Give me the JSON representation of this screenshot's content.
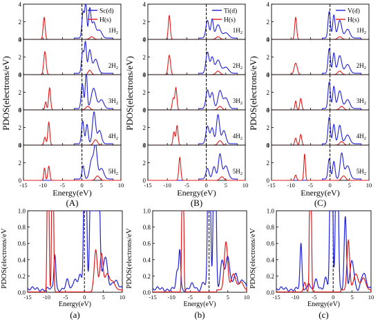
{
  "figure": {
    "top_ylabel": "PDOS(electrons/eV)",
    "bottom_ylabel": "PDOS(electrons/eV",
    "xlabel": "Energy(eV)",
    "colors": {
      "metal": "#1f1fd6",
      "hydrogen": "#e01818",
      "fermi": "#000000",
      "axis": "#000000"
    }
  },
  "chart_data": [
    {
      "type": "line",
      "panel": "(A)",
      "legend": [
        "Sc(d)",
        "H(s)"
      ],
      "xlim": [
        -15,
        10
      ],
      "ylim": [
        0,
        4
      ],
      "xticks": [
        "-15",
        "-10",
        "-5",
        "0",
        "5",
        "10"
      ],
      "yticks": [
        "0",
        "2",
        "4"
      ],
      "fermi_level": 0,
      "rows": [
        {
          "label": "1H2",
          "h_peaks": [
            [
              -9.7,
              2.5,
              0.25
            ]
          ],
          "m_peaks": [
            [
              0.3,
              3.0,
              0.3
            ],
            [
              1,
              3.9,
              0.25
            ],
            [
              2,
              3.2,
              0.3
            ],
            [
              3,
              1.8,
              0.5
            ],
            [
              4.5,
              0.9,
              0.6
            ]
          ],
          "h_small": [
            [
              2.5,
              0.3,
              0.5
            ]
          ]
        },
        {
          "label": "2H2",
          "h_peaks": [
            [
              -9.5,
              2.6,
              0.3
            ]
          ],
          "m_peaks": [
            [
              0.2,
              2.5,
              0.3
            ],
            [
              0.9,
              3.4,
              0.25
            ],
            [
              2,
              2.6,
              0.4
            ],
            [
              3.5,
              1.6,
              0.6
            ]
          ],
          "h_small": [
            [
              2,
              0.5,
              0.4
            ]
          ]
        },
        {
          "label": "3H2",
          "h_peaks": [
            [
              -9.3,
              0.9,
              0.2
            ],
            [
              -8.3,
              2.5,
              0.25
            ]
          ],
          "m_peaks": [
            [
              0.1,
              2.8,
              0.3
            ],
            [
              1.1,
              4.2,
              0.25
            ],
            [
              3,
              2.3,
              0.6
            ],
            [
              5,
              1.0,
              0.6
            ]
          ],
          "h_small": [
            [
              1.5,
              0.4,
              0.5
            ]
          ]
        },
        {
          "label": "4H2",
          "h_peaks": [
            [
              -9.5,
              0.9,
              0.25
            ],
            [
              -8.5,
              2.6,
              0.25
            ]
          ],
          "m_peaks": [
            [
              0.2,
              2.6,
              0.3
            ],
            [
              1.3,
              2.2,
              0.3
            ],
            [
              3.1,
              3.6,
              0.4
            ],
            [
              4.5,
              1.5,
              0.5
            ]
          ],
          "h_small": [
            [
              3.5,
              0.6,
              0.5
            ]
          ]
        },
        {
          "label": "5H2",
          "h_peaks": [
            [
              -9.6,
              1.4,
              0.2
            ],
            [
              -8.5,
              1.6,
              0.25
            ]
          ],
          "m_peaks": [
            [
              0.3,
              1.5,
              0.3
            ],
            [
              2.5,
              2.2,
              0.5
            ],
            [
              3.5,
              3.7,
              0.4
            ],
            [
              5,
              1.2,
              0.6
            ]
          ],
          "h_small": [
            [
              4,
              0.5,
              0.5
            ]
          ]
        }
      ]
    },
    {
      "type": "line",
      "panel": "(B)",
      "legend": [
        "Ti(d)",
        "H(s)"
      ],
      "xlim": [
        -15,
        10
      ],
      "ylim": [
        0,
        4
      ],
      "xticks": [
        "-15",
        "-10",
        "-5",
        "0",
        "5",
        "10"
      ],
      "yticks": [
        "0",
        "2",
        "4"
      ],
      "fermi_level": 0,
      "rows": [
        {
          "label": "1H2",
          "h_peaks": [
            [
              -9.5,
              2.7,
              0.25
            ]
          ],
          "m_peaks": [
            [
              0.3,
              2.0,
              0.4
            ],
            [
              1.5,
              2.1,
              0.3
            ],
            [
              3,
              1.5,
              0.6
            ],
            [
              5,
              0.6,
              0.7
            ]
          ],
          "h_small": [
            [
              3,
              0.3,
              0.5
            ]
          ]
        },
        {
          "label": "2H2",
          "h_peaks": [
            [
              -9.5,
              2.2,
              0.3
            ]
          ],
          "m_peaks": [
            [
              0.3,
              2.4,
              0.4
            ],
            [
              1.5,
              1.8,
              0.4
            ],
            [
              3,
              1.5,
              0.6
            ],
            [
              5,
              0.7,
              0.7
            ]
          ],
          "h_small": [
            [
              3,
              0.4,
              0.5
            ]
          ]
        },
        {
          "label": "3H2",
          "h_peaks": [
            [
              -8.5,
              1.3,
              0.25
            ],
            [
              -7.8,
              2.5,
              0.25
            ]
          ],
          "m_peaks": [
            [
              0.3,
              2.1,
              0.4
            ],
            [
              1.5,
              1.8,
              0.4
            ],
            [
              3.5,
              2.0,
              0.5
            ],
            [
              5,
              1.2,
              0.6
            ]
          ],
          "h_small": [
            [
              3.5,
              0.4,
              0.5
            ]
          ]
        },
        {
          "label": "4H2",
          "h_peaks": [
            [
              -8.3,
              1.5,
              0.25
            ],
            [
              -7.5,
              2.2,
              0.25
            ]
          ],
          "m_peaks": [
            [
              0.3,
              2.0,
              0.4
            ],
            [
              1.5,
              1.8,
              0.4
            ],
            [
              3,
              3.3,
              0.4
            ],
            [
              4.5,
              1.5,
              0.5
            ]
          ],
          "h_small": [
            [
              3.5,
              0.5,
              0.5
            ]
          ]
        },
        {
          "label": "5H2",
          "h_peaks": [
            [
              -6.8,
              2.6,
              0.25
            ]
          ],
          "m_peaks": [
            [
              0.3,
              1.2,
              0.4
            ],
            [
              2,
              1.4,
              0.4
            ],
            [
              3.5,
              2.8,
              0.4
            ],
            [
              5,
              1.5,
              0.6
            ]
          ],
          "h_small": [
            [
              4,
              0.4,
              0.5
            ]
          ]
        }
      ]
    },
    {
      "type": "line",
      "panel": "(C)",
      "legend": [
        "V(d)",
        "H(s)"
      ],
      "xlim": [
        -15,
        10
      ],
      "ylim": [
        0,
        4
      ],
      "xticks": [
        "-15",
        "-10",
        "-5",
        "0",
        "5",
        "10"
      ],
      "yticks": [
        "0",
        "2",
        "4"
      ],
      "fermi_level": 0,
      "rows": [
        {
          "label": "1H2",
          "h_peaks": [
            [
              -8.8,
              2.5,
              0.25
            ]
          ],
          "m_peaks": [
            [
              -0.2,
              3.0,
              0.3
            ],
            [
              1,
              2.6,
              0.3
            ],
            [
              2.5,
              2.0,
              0.5
            ],
            [
              4.5,
              1.0,
              0.6
            ]
          ],
          "h_small": [
            [
              2.5,
              0.3,
              0.5
            ]
          ]
        },
        {
          "label": "2H2",
          "h_peaks": [
            [
              -8.8,
              1.3,
              0.4
            ]
          ],
          "m_peaks": [
            [
              -0.2,
              2.8,
              0.3
            ],
            [
              1,
              2.3,
              0.3
            ],
            [
              2.5,
              2.0,
              0.5
            ],
            [
              4.5,
              1.0,
              0.6
            ]
          ],
          "h_small": [
            [
              2.5,
              0.4,
              0.5
            ]
          ]
        },
        {
          "label": "3H2",
          "h_peaks": [
            [
              -8.8,
              1.0,
              0.2
            ],
            [
              -7.5,
              1.3,
              0.25
            ]
          ],
          "m_peaks": [
            [
              -0.2,
              3.0,
              0.3
            ],
            [
              1,
              2.5,
              0.3
            ],
            [
              2.5,
              2.0,
              0.5
            ],
            [
              4.5,
              1.0,
              0.6
            ]
          ],
          "h_small": [
            [
              3,
              0.4,
              0.5
            ]
          ]
        },
        {
          "label": "4H2",
          "h_peaks": [
            [
              -8.8,
              0.8,
              0.25
            ],
            [
              -7.5,
              1.2,
              0.25
            ]
          ],
          "m_peaks": [
            [
              -0.2,
              3.0,
              0.3
            ],
            [
              1,
              2.2,
              0.3
            ],
            [
              2.5,
              2.1,
              0.4
            ],
            [
              4.5,
              1.0,
              0.6
            ]
          ],
          "h_small": [
            [
              3,
              0.4,
              0.5
            ]
          ]
        },
        {
          "label": "5H2",
          "h_peaks": [
            [
              -8.8,
              0.6,
              0.25
            ],
            [
              -6.5,
              3.0,
              0.2
            ]
          ],
          "m_peaks": [
            [
              -0.2,
              2.3,
              0.3
            ],
            [
              1,
              2.0,
              0.3
            ],
            [
              3,
              2.9,
              0.4
            ],
            [
              4.5,
              1.5,
              0.6
            ]
          ],
          "h_small": [
            [
              3.5,
              0.5,
              0.5
            ]
          ]
        }
      ]
    },
    {
      "type": "line",
      "panel": "(a)",
      "xlim": [
        -15,
        10
      ],
      "ylim": [
        0,
        1.0
      ],
      "xticks": [
        "-15",
        "-10",
        "-5",
        "0",
        "5",
        "10"
      ],
      "yticks": [
        "0.0",
        "0.2",
        "0.4",
        "0.6",
        "0.8",
        "1.0"
      ],
      "fermi_level": 0,
      "h_peaks": [
        [
          -9.6,
          3.0,
          0.2
        ],
        [
          -8.4,
          3.0,
          0.2
        ],
        [
          3,
          0.5,
          0.4
        ],
        [
          4.5,
          0.45,
          0.4
        ],
        [
          6,
          0.2,
          0.6
        ],
        [
          7.5,
          0.1,
          0.6
        ]
      ],
      "m_peaks": [
        [
          -7.8,
          0.44,
          0.25
        ],
        [
          -4.5,
          0.1,
          0.4
        ],
        [
          -2.5,
          0.15,
          0.4
        ],
        [
          -1.2,
          0.2,
          0.4
        ],
        [
          0.2,
          3.0,
          0.3
        ],
        [
          2,
          3.0,
          0.4
        ],
        [
          3.5,
          3.0,
          0.4
        ],
        [
          5.5,
          0.4,
          0.6
        ],
        [
          8,
          0.1,
          0.8
        ]
      ]
    },
    {
      "type": "line",
      "panel": "(b)",
      "xlim": [
        -15,
        10
      ],
      "ylim": [
        0,
        1.0
      ],
      "xticks": [
        "-15",
        "-10",
        "-5",
        "0",
        "5",
        "10"
      ],
      "yticks": [
        "0.0",
        "0.2",
        "0.4",
        "0.6",
        "0.8",
        "1.0"
      ],
      "fermi_level": 0,
      "h_peaks": [
        [
          -7.0,
          3.0,
          0.2
        ],
        [
          4.5,
          0.6,
          0.45
        ],
        [
          6.5,
          0.2,
          0.6
        ],
        [
          8.5,
          0.1,
          0.6
        ]
      ],
      "m_peaks": [
        [
          -8.5,
          0.2,
          0.3
        ],
        [
          -7.8,
          0.5,
          0.25
        ],
        [
          -4.5,
          0.05,
          0.5
        ],
        [
          -1.5,
          0.1,
          0.4
        ],
        [
          0,
          3.0,
          0.3
        ],
        [
          1.5,
          3.0,
          0.3
        ],
        [
          3.5,
          0.35,
          0.5
        ],
        [
          5,
          0.4,
          0.5
        ],
        [
          7,
          0.2,
          0.6
        ],
        [
          9,
          0.1,
          0.6
        ]
      ]
    },
    {
      "type": "line",
      "panel": "(c)",
      "xlim": [
        -15,
        10
      ],
      "ylim": [
        0,
        1.0
      ],
      "xticks": [
        "-15",
        "-10",
        "-5",
        "0",
        "5",
        "10"
      ],
      "yticks": [
        "0.0",
        "0.2",
        "0.4",
        "0.6",
        "0.8",
        "1.0"
      ],
      "fermi_level": 0,
      "h_peaks": [
        [
          -7.5,
          0.12,
          0.3
        ],
        [
          -6.0,
          3.0,
          0.2
        ],
        [
          4.0,
          0.62,
          0.35
        ],
        [
          6,
          0.2,
          0.6
        ],
        [
          8,
          0.15,
          0.6
        ]
      ],
      "m_peaks": [
        [
          -8.5,
          0.55,
          0.25
        ],
        [
          -6.5,
          0.1,
          0.3
        ],
        [
          -4.5,
          0.1,
          0.4
        ],
        [
          -2,
          0.15,
          0.4
        ],
        [
          -0.5,
          3.0,
          0.3
        ],
        [
          1,
          3.0,
          0.3
        ],
        [
          3.2,
          0.9,
          0.3
        ],
        [
          5,
          0.35,
          0.5
        ],
        [
          8,
          0.2,
          0.6
        ]
      ]
    }
  ],
  "panel_labels": [
    "(A)",
    "(B)",
    "(C)",
    "(a)",
    "(b)",
    "(c)"
  ]
}
